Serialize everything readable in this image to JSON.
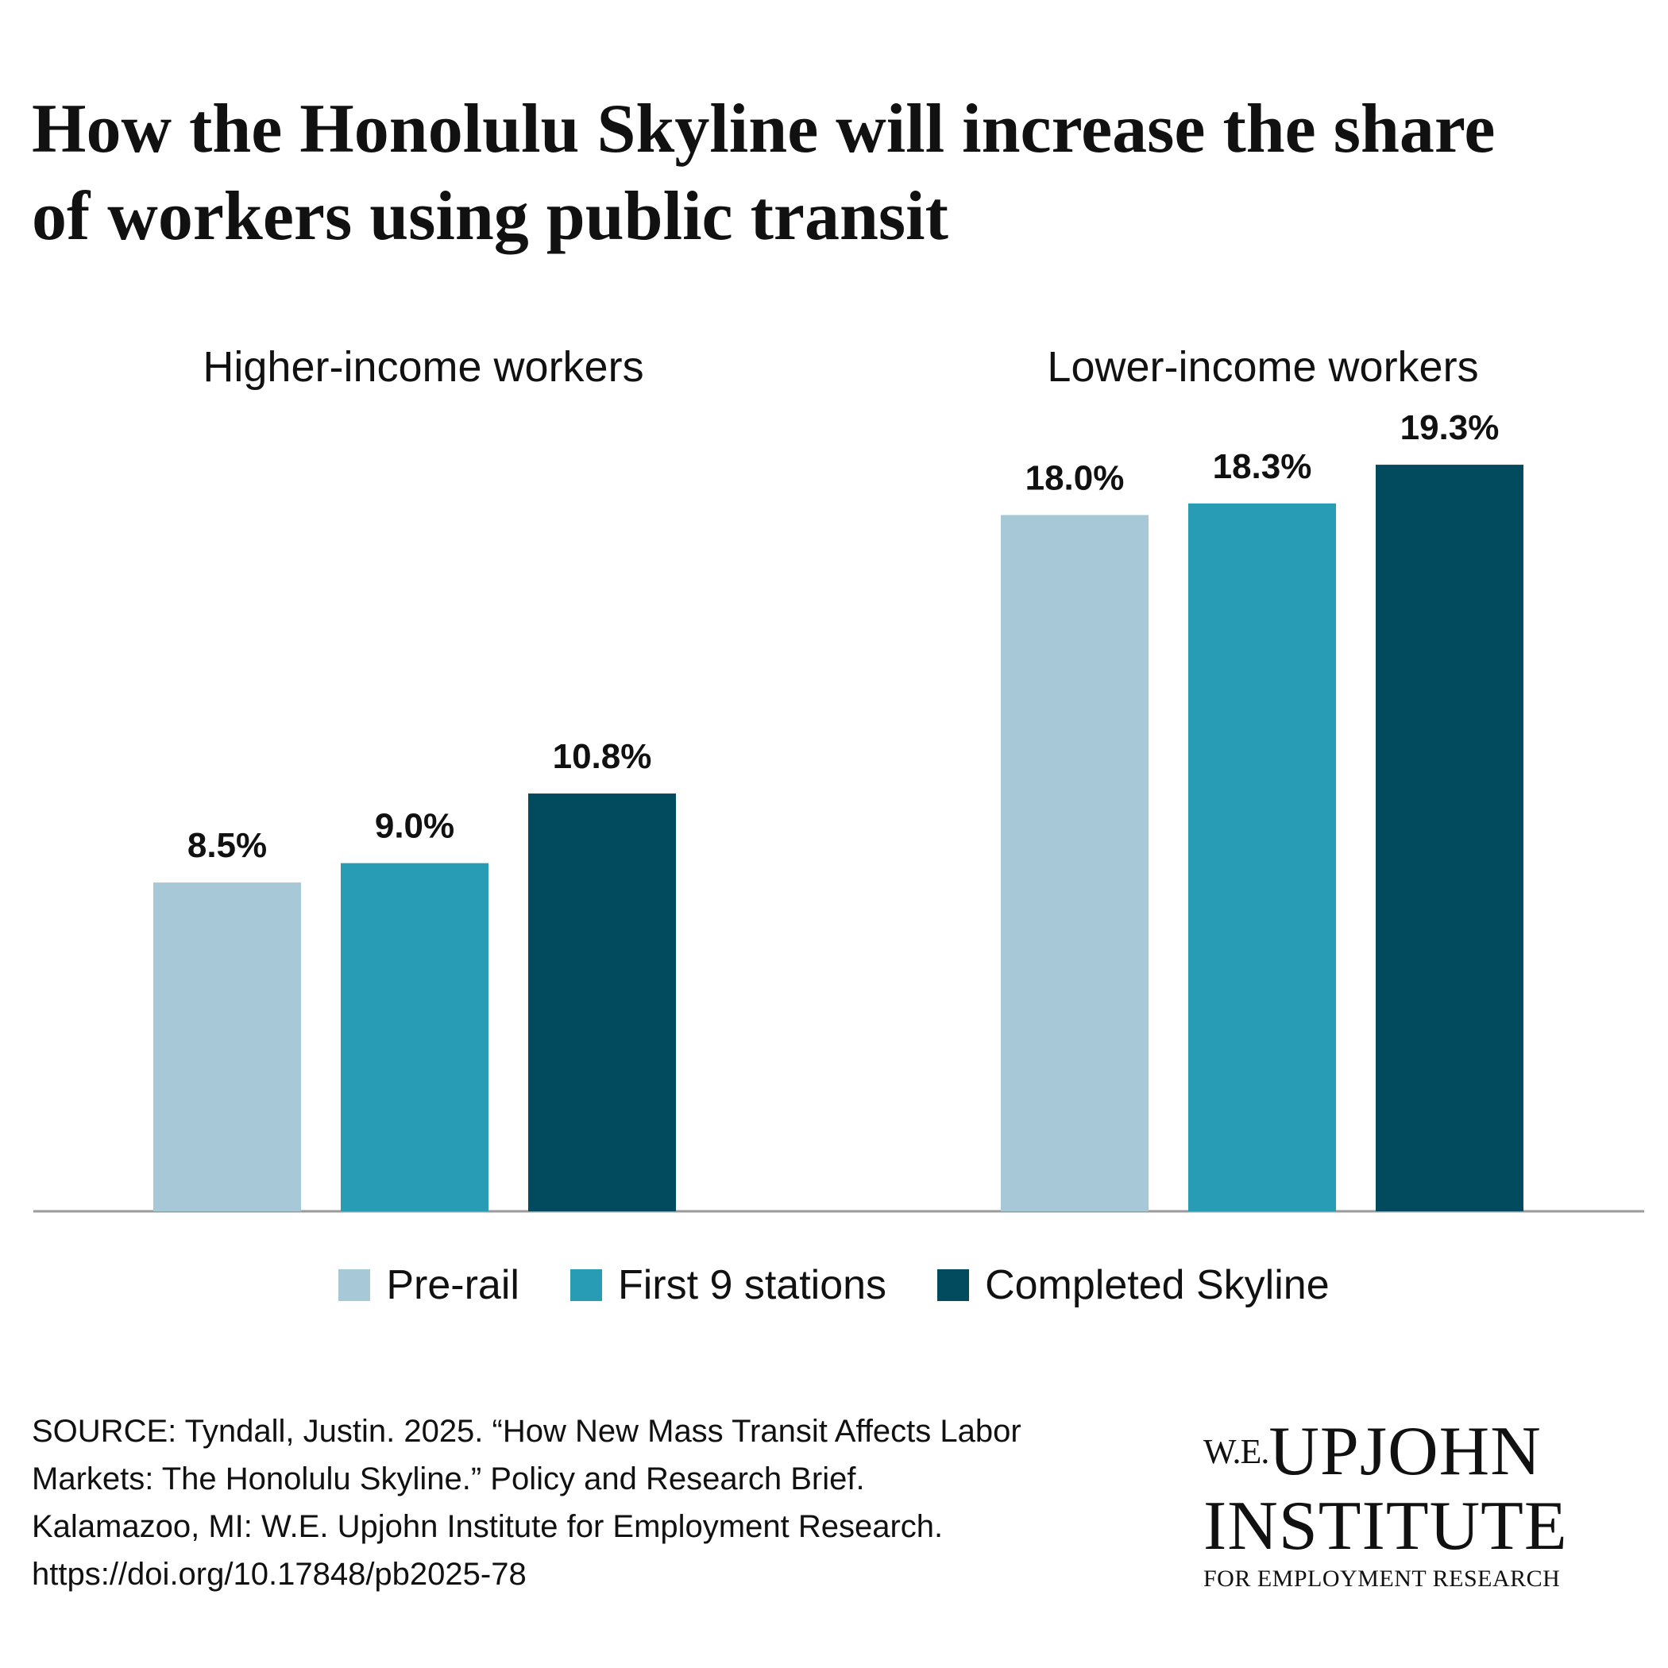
{
  "title_lines": [
    "How the Honolulu Skyline will increase the share",
    "of workers using public transit"
  ],
  "chart_data": {
    "type": "bar",
    "categories": [
      "Higher-income workers",
      "Lower-income workers"
    ],
    "series": [
      {
        "name": "Pre-rail",
        "values": [
          8.5,
          18.0
        ],
        "labels": [
          "8.5%",
          "18.0%"
        ],
        "color": "#a7c9d7"
      },
      {
        "name": "First 9 stations",
        "values": [
          9.0,
          18.3
        ],
        "labels": [
          "9.0%",
          "18.3%"
        ],
        "color": "#299cb5"
      },
      {
        "name": "Completed Skyline",
        "values": [
          10.8,
          19.3
        ],
        "labels": [
          "10.8%",
          "19.3%"
        ],
        "color": "#024b5f"
      }
    ],
    "unit": "%",
    "ylim": [
      0,
      20
    ],
    "grid": false,
    "legend": "bottom",
    "baseline_color": "#9a9a9a"
  },
  "source_lines": [
    "SOURCE: Tyndall, Justin. 2025. “How New Mass Transit Affects Labor",
    "Markets: The Honolulu Skyline.” Policy and Research Brief.",
    "Kalamazoo, MI: W.E. Upjohn Institute for Employment Research.",
    "https://doi.org/10.17848/pb2025-78"
  ],
  "logo": {
    "we": "W.E.",
    "upjohn": "UPJOHN",
    "institute": "INSTITUTE",
    "tagline": "FOR EMPLOYMENT RESEARCH"
  }
}
